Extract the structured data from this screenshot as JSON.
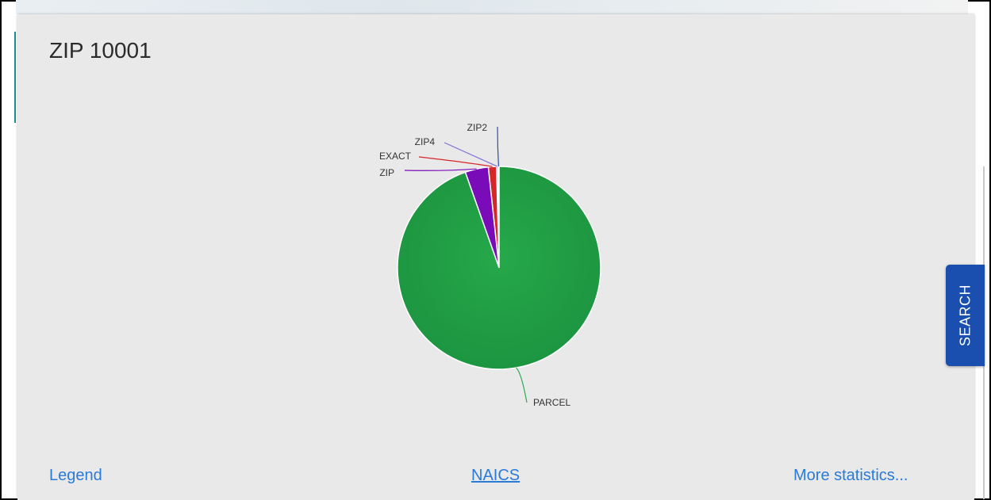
{
  "panel": {
    "title": "ZIP 10001"
  },
  "chart_data": {
    "type": "pie",
    "title": "",
    "slices": [
      {
        "label": "PARCEL",
        "value": 94.6,
        "color": "#21a044"
      },
      {
        "label": "ZIP",
        "value": 3.7,
        "color": "#7a0bb8"
      },
      {
        "label": "EXACT",
        "value": 1.3,
        "color": "#d42828"
      },
      {
        "label": "ZIP4",
        "value": 0.25,
        "color": "#7f6fd6"
      },
      {
        "label": "ZIP2",
        "value": 0.15,
        "color": "#2a4fa5"
      }
    ]
  },
  "footer": {
    "legend_label": "Legend",
    "naics_label": "NAICS",
    "more_label": "More statistics..."
  },
  "search_tab": {
    "label": "SEARCH"
  },
  "colors": {
    "panel_bg": "#e9e9e9",
    "link": "#2a7ad8",
    "search_tab": "#1a4fb0"
  }
}
